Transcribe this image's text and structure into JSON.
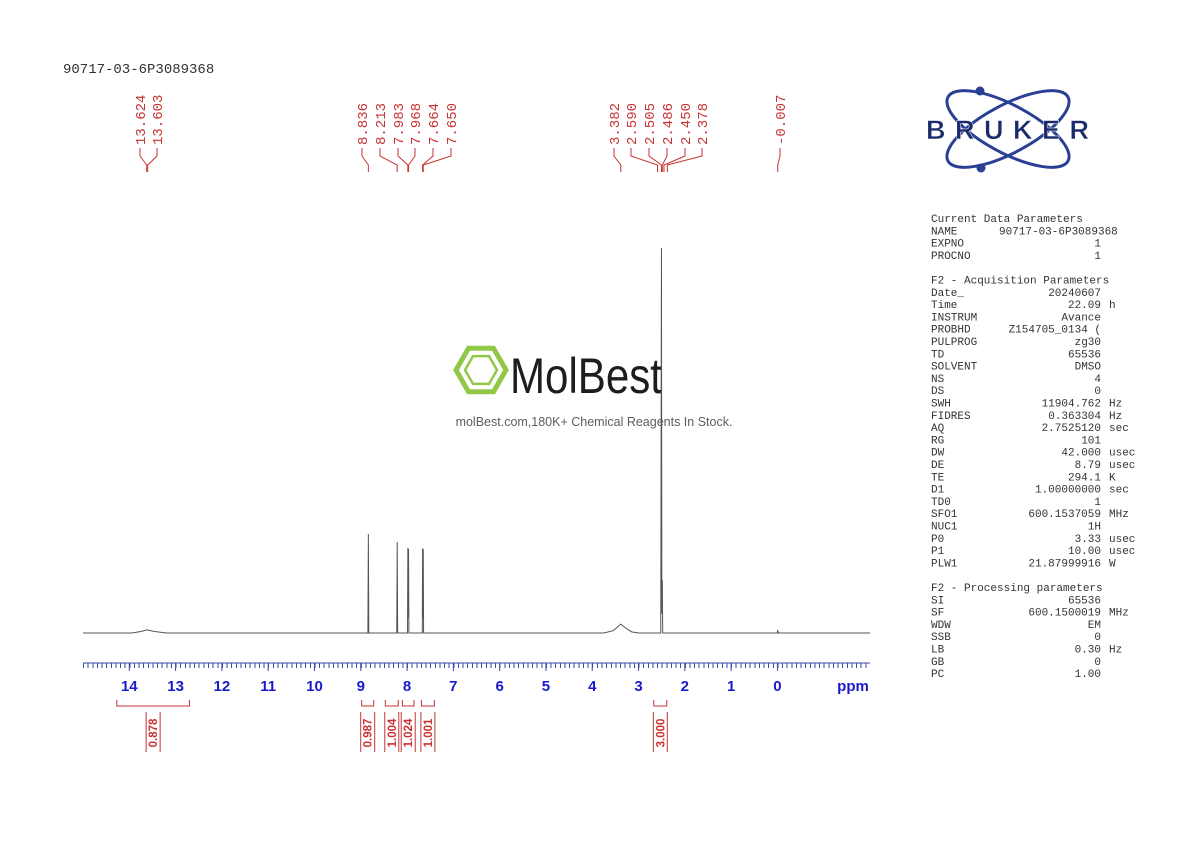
{
  "header": {
    "sample": "90717-03-6P3089368"
  },
  "logo": "BRUKER",
  "watermark": {
    "brand": "MolBest",
    "tagline": "molBest.com,180K+ Chemical Reagents In Stock."
  },
  "chart_data": {
    "type": "nmr",
    "x_label": "ppm",
    "xlim": [
      15,
      -2
    ],
    "xticks": [
      14,
      13,
      12,
      11,
      10,
      9,
      8,
      7,
      6,
      5,
      4,
      3,
      2,
      1,
      0
    ],
    "ylim": [
      0,
      100
    ],
    "color": "#555555",
    "peak_labels": [
      13.624,
      13.603,
      8.836,
      8.213,
      7.983,
      7.968,
      7.664,
      {
        "value": 7.65,
        "label": "7.650"
      },
      3.382,
      {
        "value": 2.59,
        "label": "2.590"
      },
      2.505,
      2.486,
      {
        "value": 2.45,
        "label": "2.450"
      },
      2.378,
      -0.007
    ],
    "spectrum": {
      "x": [
        15,
        13.95,
        13.75,
        13.62,
        13.45,
        13.2,
        8.846,
        8.836,
        8.826,
        8.223,
        8.213,
        8.203,
        7.99,
        7.983,
        7.975,
        7.968,
        7.96,
        7.671,
        7.664,
        7.657,
        7.65,
        7.643,
        3.75,
        3.55,
        3.45,
        3.382,
        3.3,
        3.15,
        3.0,
        2.52,
        2.505,
        2.496,
        2.486,
        2.478,
        0.003,
        -0.007,
        -0.017,
        -2
      ],
      "values": [
        0,
        0,
        0.4,
        0.8,
        0.4,
        0,
        0,
        25.7,
        0,
        0,
        23.6,
        0,
        0,
        22.1,
        4,
        21.8,
        0,
        0,
        22,
        4,
        21.8,
        0,
        0,
        0.6,
        1.6,
        2.3,
        1.5,
        0.3,
        0,
        0,
        100,
        5,
        13.8,
        0,
        0,
        0.8,
        0,
        0
      ]
    },
    "integrals": {
      "ranges": [
        [
          14.27,
          12.7
        ],
        [
          8.98,
          8.72
        ],
        [
          8.47,
          8.19
        ],
        [
          8.1,
          7.85
        ],
        [
          7.69,
          7.41
        ],
        [
          2.67,
          2.39
        ]
      ],
      "values": [
        0.878,
        0.987,
        1.004,
        1.024,
        1.001,
        3.0
      ],
      "value_labels": [
        "0.878",
        "0.987",
        "1.004",
        "1.024",
        "1.001",
        "3.000"
      ]
    }
  },
  "parameters": [
    {
      "title": "Current Data Parameters",
      "rows": [
        [
          "NAME",
          "90717-03-6P3089368"
        ],
        [
          "EXPNO",
          "1"
        ],
        [
          "PROCNO",
          "1"
        ]
      ]
    },
    {
      "title": "F2 - Acquisition Parameters",
      "rows": [
        [
          "Date_",
          "20240607"
        ],
        [
          "Time",
          "22.09",
          "h"
        ],
        [
          "INSTRUM",
          "Avance"
        ],
        [
          "PROBHD",
          "Z154705_0134 ("
        ],
        [
          "PULPROG",
          "zg30"
        ],
        [
          "TD",
          "65536"
        ],
        [
          "SOLVENT",
          "DMSO"
        ],
        [
          "NS",
          "4"
        ],
        [
          "DS",
          "0"
        ],
        [
          "SWH",
          "11904.762",
          "Hz"
        ],
        [
          "FIDRES",
          "0.363304",
          "Hz"
        ],
        [
          "AQ",
          "2.7525120",
          "sec"
        ],
        [
          "RG",
          "101"
        ],
        [
          "DW",
          "42.000",
          "usec"
        ],
        [
          "DE",
          "8.79",
          "usec"
        ],
        [
          "TE",
          "294.1",
          "K"
        ],
        [
          "D1",
          "1.00000000",
          "sec"
        ],
        [
          "TD0",
          "1"
        ],
        [
          "SFO1",
          "600.1537059",
          "MHz"
        ],
        [
          "NUC1",
          "1H"
        ],
        [
          "P0",
          "3.33",
          "usec"
        ],
        [
          "P1",
          "10.00",
          "usec"
        ],
        [
          "PLW1",
          "21.87999916",
          "W"
        ]
      ]
    },
    {
      "title": "F2 - Processing parameters",
      "rows": [
        [
          "SI",
          "65536"
        ],
        [
          "SF",
          "600.1500019",
          "MHz"
        ],
        [
          "WDW",
          "EM"
        ],
        [
          "SSB",
          "0"
        ],
        [
          "LB",
          "0.30",
          "Hz"
        ],
        [
          "GB",
          "0"
        ],
        [
          "PC",
          "1.00"
        ]
      ]
    }
  ]
}
